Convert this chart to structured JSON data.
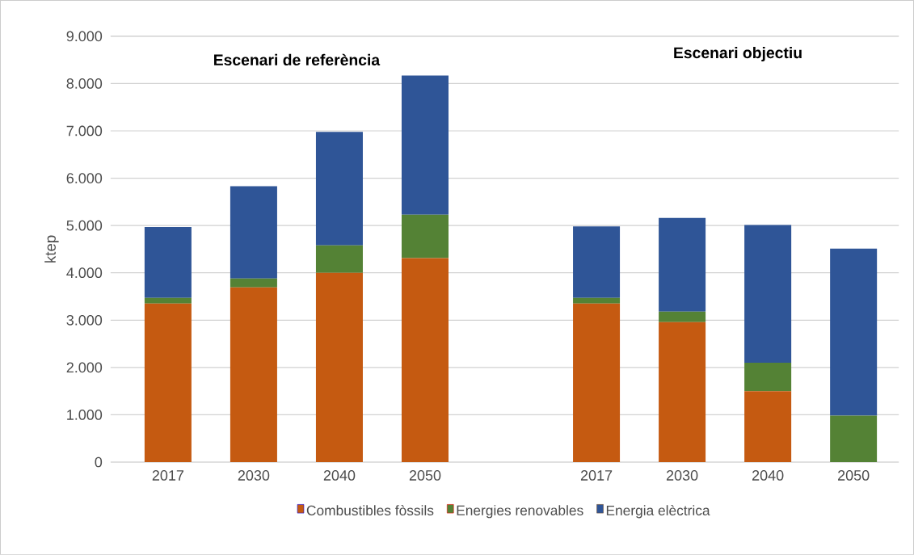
{
  "chart_data": {
    "type": "bar",
    "stacked": true,
    "ylabel": "ktep",
    "annotations": [
      "Escenari de referència",
      "Escenari objectiu"
    ],
    "categories": [
      "2017",
      "2030",
      "2040",
      "2050",
      null,
      "2017",
      "2030",
      "2040",
      "2050"
    ],
    "series": [
      {
        "name": "Combustibles fòssils",
        "color": "#c55a11",
        "values": [
          3350,
          3690,
          4000,
          4310,
          null,
          3350,
          2960,
          1500,
          0
        ]
      },
      {
        "name": "Energies renovables",
        "color": "#548235",
        "values": [
          120,
          190,
          580,
          920,
          null,
          120,
          220,
          600,
          980
        ]
      },
      {
        "name": "Energia elèctrica",
        "color": "#2f5597",
        "values": [
          1500,
          1950,
          2400,
          2940,
          null,
          1510,
          1980,
          2910,
          3530
        ]
      }
    ],
    "ylim": [
      0,
      9000
    ],
    "yticks": [
      0,
      {
        "value": 1000,
        "label": "1.000"
      },
      {
        "value": 2000,
        "label": "2.000"
      },
      {
        "value": 3000,
        "label": "3.000"
      },
      {
        "value": 4000,
        "label": "4.000"
      },
      {
        "value": 5000,
        "label": "5.000"
      },
      {
        "value": 6000,
        "label": "6.000"
      },
      {
        "value": 7000,
        "label": "7.000"
      },
      {
        "value": 8000,
        "label": "8.000"
      },
      {
        "value": 9000,
        "label": "9.000"
      }
    ],
    "grid": "y",
    "legend": "bottom"
  }
}
